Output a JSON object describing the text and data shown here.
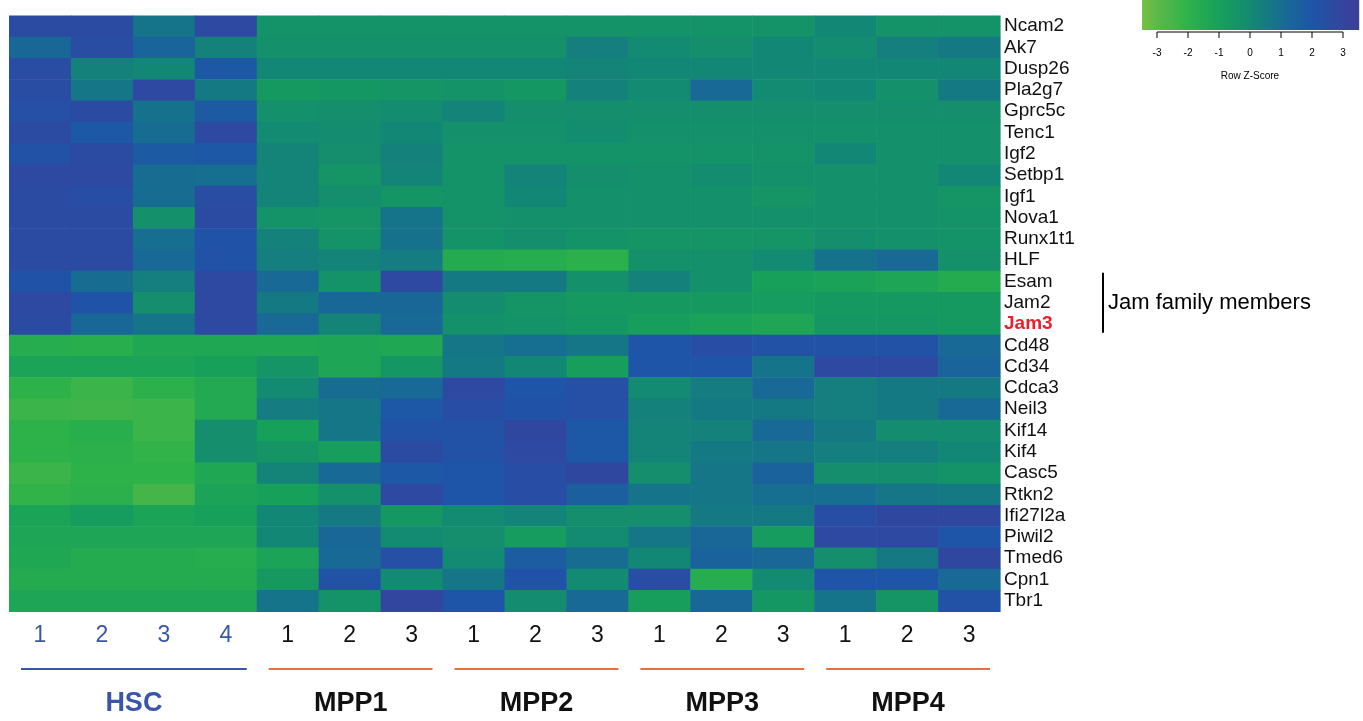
{
  "chart_data": {
    "type": "heatmap",
    "categories": [
      "1",
      "2",
      "3",
      "4",
      "1",
      "2",
      "3",
      "1",
      "2",
      "3",
      "1",
      "2",
      "3",
      "1",
      "2",
      "3"
    ],
    "y_categories": [
      "Ncam2",
      "Ak7",
      "Dusp26",
      "Pla2g7",
      "Gprc5c",
      "Tenc1",
      "Igf2",
      "Setbp1",
      "Igf1",
      "Nova1",
      "Runx1t1",
      "HLF",
      "Esam",
      "Jam2",
      "Jam3",
      "Cd48",
      "Cd34",
      "Cdca3",
      "Neil3",
      "Kif14",
      "Kif4",
      "Casc5",
      "Rtkn2",
      "Ifi27l2a",
      "Piwil2",
      "Tmed6",
      "Cpn1",
      "Tbr1"
    ],
    "cells": [
      [
        2.6,
        2.6,
        0.8,
        2.7,
        -0.4,
        -0.4,
        -0.4,
        -0.4,
        -0.4,
        -0.4,
        -0.4,
        -0.4,
        -0.4,
        0.1,
        -0.4,
        -0.4
      ],
      [
        1.3,
        2.5,
        1.4,
        0.3,
        -0.3,
        -0.3,
        -0.3,
        -0.3,
        -0.3,
        0.4,
        0,
        -0.2,
        0.1,
        -0.1,
        0.4,
        0.6
      ],
      [
        2.5,
        0.3,
        0.1,
        1.9,
        0.1,
        0.1,
        0.1,
        0.1,
        0.1,
        0.2,
        0.1,
        0.1,
        0.1,
        0.1,
        0.1,
        0.1
      ],
      [
        2.5,
        0.7,
        2.7,
        0.6,
        -0.7,
        -0.6,
        -0.5,
        -0.4,
        -0.6,
        0.3,
        0,
        1.2,
        0,
        0.1,
        -0.3,
        0.6
      ],
      [
        2.3,
        2.6,
        0.9,
        1.8,
        -0.3,
        -0.2,
        -0.1,
        0.2,
        -0.2,
        -0.2,
        -0.2,
        -0.2,
        -0.2,
        -0.2,
        -0.2,
        -0.2
      ],
      [
        2.6,
        1.9,
        1.1,
        2.7,
        0,
        -0.1,
        0.1,
        -0.3,
        -0.3,
        -0.1,
        -0.3,
        -0.3,
        -0.3,
        -0.3,
        -0.3,
        -0.3
      ],
      [
        2.2,
        2.6,
        1.8,
        1.9,
        0.2,
        -0.2,
        0.3,
        -0.4,
        -0.4,
        -0.4,
        -0.4,
        -0.4,
        -0.4,
        0.1,
        -0.3,
        -0.3
      ],
      [
        2.7,
        2.7,
        1.1,
        1,
        0.2,
        -0.5,
        0.2,
        -0.4,
        0.2,
        -0.2,
        -0.3,
        -0.1,
        -0.3,
        -0.3,
        -0.3,
        0.1
      ],
      [
        2.6,
        2.4,
        1.1,
        2.5,
        0.2,
        -0.2,
        -0.5,
        -0.4,
        0.1,
        -0.3,
        -0.3,
        -0.3,
        -0.5,
        -0.3,
        -0.3,
        -0.5
      ],
      [
        2.6,
        2.6,
        -0.3,
        2.6,
        -0.4,
        -0.5,
        0.8,
        -0.4,
        -0.3,
        -0.3,
        -0.3,
        -0.3,
        -0.3,
        -0.3,
        -0.3,
        -0.4
      ],
      [
        2.6,
        2.6,
        1,
        2.1,
        0.3,
        -0.4,
        0.9,
        -0.4,
        -0.2,
        -0.4,
        -0.5,
        -0.5,
        -0.5,
        -0.2,
        -0.3,
        -0.4
      ],
      [
        2.6,
        2.6,
        1.2,
        2.1,
        0.4,
        0.2,
        0.5,
        -1.6,
        -1.7,
        -1.9,
        -0.3,
        -0.3,
        0,
        0.9,
        1.2,
        -0.3
      ],
      [
        2.1,
        1.1,
        0.4,
        2.7,
        1.2,
        -0.4,
        2.7,
        0.6,
        0.6,
        -0.3,
        0.3,
        -0.3,
        -1,
        -1.1,
        -1.3,
        -1.6
      ],
      [
        2.7,
        2.1,
        -0.2,
        2.7,
        0.6,
        1.3,
        1.3,
        -0.1,
        -0.5,
        -0.7,
        -0.7,
        -0.7,
        -0.8,
        -0.7,
        -0.7,
        -0.7
      ],
      [
        2.6,
        1.3,
        0.8,
        2.7,
        1.2,
        0.2,
        1.2,
        -0.3,
        -0.4,
        -0.6,
        -0.9,
        -1.1,
        -1.3,
        -0.6,
        -0.6,
        -0.7
      ],
      [
        -1.7,
        -1.8,
        -1.4,
        -1.4,
        -1.4,
        -1.3,
        -1.4,
        0.7,
        1,
        0.7,
        2,
        2.4,
        2.2,
        2.2,
        2.2,
        1.2
      ],
      [
        -1.2,
        -1.2,
        -1.2,
        -1,
        -0.5,
        -1.3,
        -0.6,
        0.6,
        0.1,
        -0.9,
        2,
        2,
        0.8,
        2.7,
        2.7,
        1.4
      ],
      [
        -2,
        -2.3,
        -1.9,
        -1.5,
        0,
        1.1,
        1.2,
        2.7,
        2,
        2.3,
        0,
        0.5,
        1.2,
        0.4,
        0.6,
        0.6
      ],
      [
        -2.3,
        -2.4,
        -2.3,
        -1.5,
        0.5,
        0.7,
        1.9,
        2.4,
        2.1,
        2.3,
        0.3,
        0.6,
        0.6,
        0.4,
        0.6,
        1.2
      ],
      [
        -2,
        -1.8,
        -2.3,
        -0.2,
        -1,
        0.7,
        2.2,
        2.2,
        2.8,
        1.9,
        0.2,
        0.3,
        1.2,
        0.6,
        -0.1,
        -0.1
      ],
      [
        -2,
        -1.9,
        -2.1,
        -0.2,
        -0.5,
        -0.9,
        2.6,
        2.2,
        2.7,
        1.9,
        0.2,
        0.6,
        0.7,
        0.4,
        0.4,
        0.1
      ],
      [
        -2.3,
        -2,
        -2,
        -1.4,
        0.2,
        1.2,
        1.9,
        2,
        2.4,
        2.8,
        -0.2,
        0.7,
        1.5,
        -0.2,
        -0.2,
        -0.4
      ],
      [
        -2.1,
        -1.9,
        -2.5,
        -1.2,
        -1,
        -0.3,
        2.7,
        2,
        2.4,
        1.6,
        0.8,
        0.7,
        1,
        1,
        0.7,
        0.6
      ],
      [
        -1.2,
        -0.8,
        -1.2,
        -1,
        0.1,
        0.6,
        -0.6,
        0,
        0.2,
        -0.2,
        -0.2,
        0.6,
        0.6,
        2.4,
        2.8,
        2.8
      ],
      [
        -1.3,
        -1.3,
        -1.3,
        -1.3,
        0.1,
        1.3,
        0,
        -0.2,
        -0.8,
        0,
        0.7,
        1.3,
        -0.8,
        2.7,
        2.7,
        2
      ],
      [
        -1.4,
        -1.6,
        -1.6,
        -1.7,
        -1.2,
        1.2,
        2.3,
        0,
        1.7,
        1.1,
        0.1,
        1.5,
        1.3,
        -0.2,
        0.6,
        2.8
      ],
      [
        -1.6,
        -1.6,
        -1.6,
        -1.6,
        -0.7,
        2.2,
        0,
        0.7,
        2.1,
        0,
        2.4,
        -1.7,
        0,
        2,
        2,
        1.2
      ],
      [
        -1.3,
        -1.3,
        -1.3,
        -1.3,
        0.8,
        -0.4,
        2.9,
        2,
        -0.1,
        1.2,
        -0.9,
        1.3,
        -0.6,
        0.8,
        -0.5,
        2.2
      ]
    ],
    "clim": [
      -3.5,
      3.5
    ],
    "cticks": [
      -3,
      -2,
      -1,
      0,
      1,
      2,
      3
    ],
    "clabel": "Row Z-Score",
    "annotations": [
      "HSC",
      "MPP1",
      "MPP2",
      "MPP3",
      "MPP4",
      "Jam family members"
    ]
  }
}
